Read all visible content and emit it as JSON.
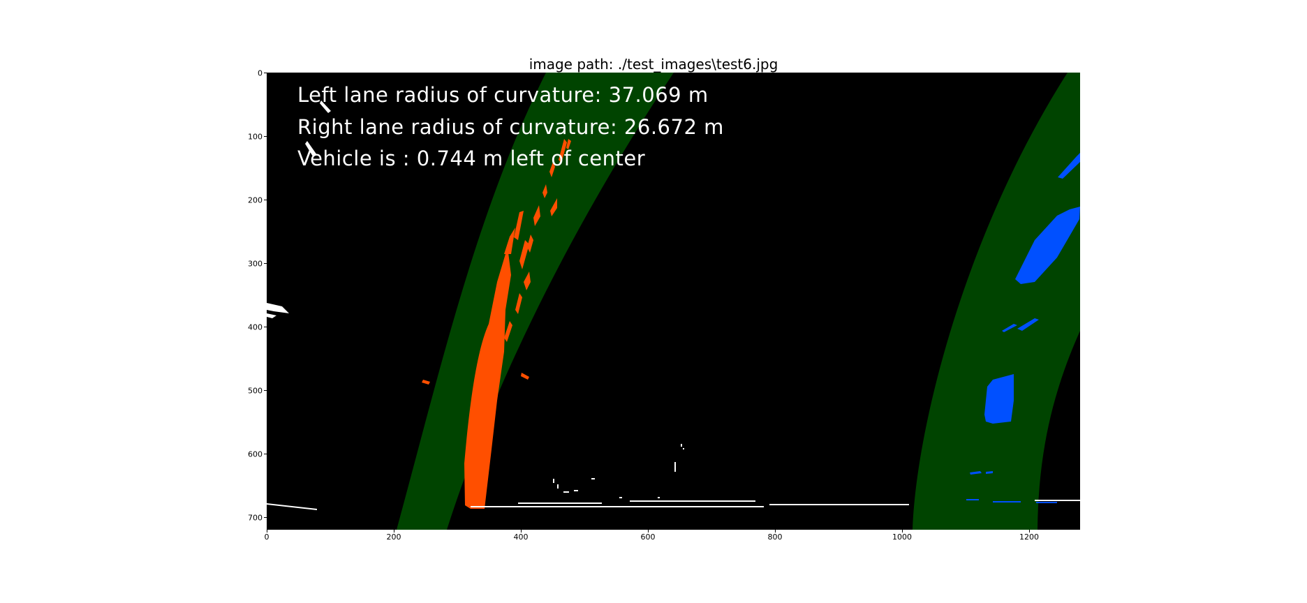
{
  "figure": {
    "title": "image path: ./test_images\\test6.jpg"
  },
  "image": {
    "overlay_lines": [
      "Left lane radius of curvature: 37.069 m",
      "Right lane radius of curvature: 26.672 m",
      "Vehicle is : 0.744 m left of center"
    ]
  },
  "axes": {
    "y_ticks": [
      "0",
      "100",
      "200",
      "300",
      "400",
      "500",
      "600",
      "700"
    ],
    "x_ticks": [
      "0",
      "200",
      "400",
      "600",
      "800",
      "1000",
      "1200"
    ]
  },
  "colors": {
    "background": "#000000",
    "lane_window": "#004400",
    "left_lane_pixels": "#ff4f00",
    "right_lane_pixels": "#0050ff",
    "noise": "#ffffff"
  }
}
